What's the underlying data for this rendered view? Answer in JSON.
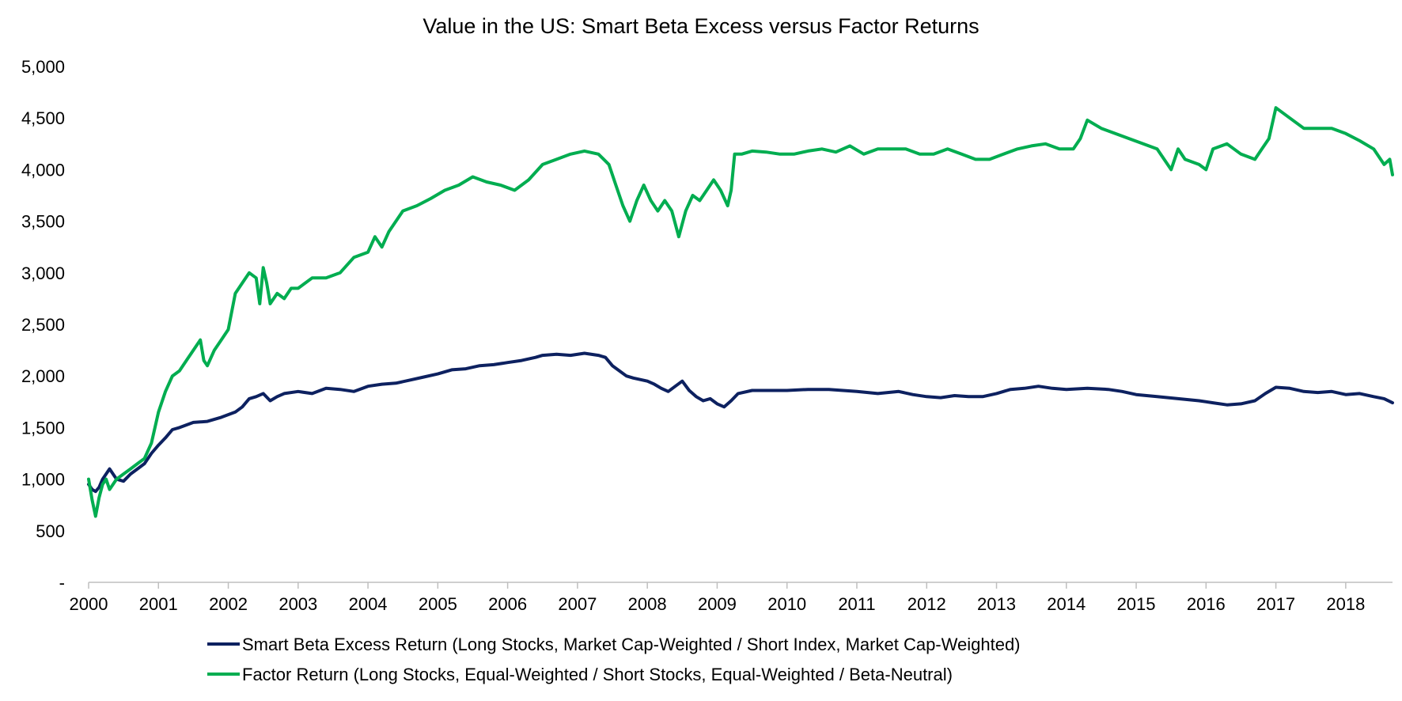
{
  "chart_data": {
    "type": "line",
    "title": "Value in the US: Smart Beta Excess versus Factor Returns",
    "xlabel": "",
    "ylabel": "",
    "ylim": [
      0,
      5000
    ],
    "xlim": [
      2000.0,
      2018.67
    ],
    "grid": false,
    "legend_position": "bottom",
    "y_ticks": [
      {
        "value": 0,
        "label": "-"
      },
      {
        "value": 500,
        "label": "500"
      },
      {
        "value": 1000,
        "label": "1,000"
      },
      {
        "value": 1500,
        "label": "1,500"
      },
      {
        "value": 2000,
        "label": "2,000"
      },
      {
        "value": 2500,
        "label": "2,500"
      },
      {
        "value": 3000,
        "label": "3,000"
      },
      {
        "value": 3500,
        "label": "3,500"
      },
      {
        "value": 4000,
        "label": "4,000"
      },
      {
        "value": 4500,
        "label": "4,500"
      },
      {
        "value": 5000,
        "label": "5,000"
      }
    ],
    "x_ticks": [
      {
        "value": 2000,
        "label": "2000"
      },
      {
        "value": 2001,
        "label": "2001"
      },
      {
        "value": 2002,
        "label": "2002"
      },
      {
        "value": 2003,
        "label": "2003"
      },
      {
        "value": 2004,
        "label": "2004"
      },
      {
        "value": 2005,
        "label": "2005"
      },
      {
        "value": 2006,
        "label": "2006"
      },
      {
        "value": 2007,
        "label": "2007"
      },
      {
        "value": 2008,
        "label": "2008"
      },
      {
        "value": 2009,
        "label": "2009"
      },
      {
        "value": 2010,
        "label": "2010"
      },
      {
        "value": 2011,
        "label": "2011"
      },
      {
        "value": 2012,
        "label": "2012"
      },
      {
        "value": 2013,
        "label": "2013"
      },
      {
        "value": 2014,
        "label": "2014"
      },
      {
        "value": 2015,
        "label": "2015"
      },
      {
        "value": 2016,
        "label": "2016"
      },
      {
        "value": 2017,
        "label": "2017"
      },
      {
        "value": 2018,
        "label": "2018"
      }
    ],
    "series": [
      {
        "name": "Smart Beta Excess Return (Long Stocks, Market Cap-Weighted / Short Index, Market Cap-Weighted)",
        "color": "#0d2160",
        "x": [
          2000.0,
          2000.05,
          2000.1,
          2000.15,
          2000.2,
          2000.25,
          2000.3,
          2000.4,
          2000.5,
          2000.6,
          2000.7,
          2000.8,
          2000.9,
          2001.0,
          2001.1,
          2001.2,
          2001.3,
          2001.5,
          2001.7,
          2001.9,
          2002.1,
          2002.2,
          2002.3,
          2002.4,
          2002.5,
          2002.6,
          2002.7,
          2002.8,
          2003.0,
          2003.2,
          2003.4,
          2003.6,
          2003.8,
          2004.0,
          2004.2,
          2004.4,
          2004.6,
          2004.8,
          2005.0,
          2005.2,
          2005.4,
          2005.6,
          2005.8,
          2006.0,
          2006.2,
          2006.4,
          2006.5,
          2006.7,
          2006.9,
          2007.1,
          2007.3,
          2007.4,
          2007.5,
          2007.6,
          2007.7,
          2007.8,
          2008.0,
          2008.1,
          2008.2,
          2008.3,
          2008.4,
          2008.5,
          2008.6,
          2008.7,
          2008.8,
          2008.9,
          2009.0,
          2009.1,
          2009.2,
          2009.3,
          2009.5,
          2009.7,
          2010.0,
          2010.3,
          2010.6,
          2011.0,
          2011.3,
          2011.6,
          2011.8,
          2012.0,
          2012.2,
          2012.4,
          2012.6,
          2012.8,
          2013.0,
          2013.2,
          2013.4,
          2013.6,
          2013.8,
          2014.0,
          2014.3,
          2014.6,
          2014.8,
          2015.0,
          2015.3,
          2015.6,
          2015.9,
          2016.1,
          2016.3,
          2016.5,
          2016.7,
          2016.85,
          2017.0,
          2017.2,
          2017.4,
          2017.6,
          2017.8,
          2018.0,
          2018.2,
          2018.4,
          2018.55,
          2018.67
        ],
        "values": [
          950,
          900,
          880,
          920,
          1000,
          1050,
          1100,
          1000,
          980,
          1050,
          1100,
          1150,
          1250,
          1330,
          1400,
          1480,
          1500,
          1550,
          1560,
          1600,
          1650,
          1700,
          1780,
          1800,
          1830,
          1760,
          1800,
          1830,
          1850,
          1830,
          1880,
          1870,
          1850,
          1900,
          1920,
          1930,
          1960,
          1990,
          2020,
          2060,
          2070,
          2100,
          2110,
          2130,
          2150,
          2180,
          2200,
          2210,
          2200,
          2220,
          2200,
          2180,
          2100,
          2050,
          2000,
          1980,
          1950,
          1920,
          1880,
          1850,
          1900,
          1950,
          1860,
          1800,
          1760,
          1780,
          1730,
          1700,
          1760,
          1830,
          1860,
          1860,
          1860,
          1870,
          1870,
          1850,
          1830,
          1850,
          1820,
          1800,
          1790,
          1810,
          1800,
          1800,
          1830,
          1870,
          1880,
          1900,
          1880,
          1870,
          1880,
          1870,
          1850,
          1820,
          1800,
          1780,
          1760,
          1740,
          1720,
          1730,
          1760,
          1830,
          1890,
          1880,
          1850,
          1840,
          1850,
          1820,
          1830,
          1800,
          1780,
          1740
        ]
      },
      {
        "name": "Factor Return (Long Stocks, Equal-Weighted / Short Stocks, Equal-Weighted / Beta-Neutral)",
        "color": "#00ad50",
        "x": [
          2000.0,
          2000.05,
          2000.1,
          2000.15,
          2000.2,
          2000.25,
          2000.3,
          2000.35,
          2000.4,
          2000.5,
          2000.6,
          2000.7,
          2000.8,
          2000.9,
          2001.0,
          2001.1,
          2001.2,
          2001.3,
          2001.4,
          2001.5,
          2001.6,
          2001.65,
          2001.7,
          2001.8,
          2001.9,
          2002.0,
          2002.1,
          2002.2,
          2002.3,
          2002.4,
          2002.45,
          2002.5,
          2002.55,
          2002.6,
          2002.7,
          2002.8,
          2002.9,
          2003.0,
          2003.2,
          2003.4,
          2003.6,
          2003.8,
          2004.0,
          2004.1,
          2004.2,
          2004.3,
          2004.4,
          2004.5,
          2004.7,
          2004.9,
          2005.1,
          2005.3,
          2005.5,
          2005.7,
          2005.9,
          2006.1,
          2006.3,
          2006.5,
          2006.7,
          2006.9,
          2007.1,
          2007.3,
          2007.45,
          2007.55,
          2007.65,
          2007.75,
          2007.85,
          2007.95,
          2008.05,
          2008.15,
          2008.25,
          2008.35,
          2008.45,
          2008.55,
          2008.65,
          2008.75,
          2008.85,
          2008.95,
          2009.05,
          2009.15,
          2009.2,
          2009.25,
          2009.35,
          2009.5,
          2009.7,
          2009.9,
          2010.1,
          2010.3,
          2010.5,
          2010.7,
          2010.9,
          2011.1,
          2011.3,
          2011.5,
          2011.7,
          2011.9,
          2012.1,
          2012.3,
          2012.5,
          2012.7,
          2012.9,
          2013.1,
          2013.3,
          2013.5,
          2013.7,
          2013.9,
          2014.1,
          2014.2,
          2014.3,
          2014.5,
          2014.7,
          2014.9,
          2015.1,
          2015.3,
          2015.5,
          2015.6,
          2015.7,
          2015.9,
          2016.0,
          2016.1,
          2016.3,
          2016.5,
          2016.7,
          2016.8,
          2016.9,
          2017.0,
          2017.2,
          2017.4,
          2017.6,
          2017.8,
          2018.0,
          2018.2,
          2018.4,
          2018.55,
          2018.63,
          2018.67
        ],
        "values": [
          1000,
          800,
          640,
          820,
          950,
          1000,
          900,
          950,
          1000,
          1050,
          1100,
          1150,
          1200,
          1350,
          1650,
          1850,
          2000,
          2050,
          2150,
          2250,
          2350,
          2150,
          2100,
          2250,
          2350,
          2450,
          2800,
          2900,
          3000,
          2950,
          2700,
          3050,
          2900,
          2700,
          2800,
          2750,
          2850,
          2850,
          2950,
          2950,
          3000,
          3150,
          3200,
          3350,
          3250,
          3400,
          3500,
          3600,
          3650,
          3720,
          3800,
          3850,
          3930,
          3880,
          3850,
          3800,
          3900,
          4050,
          4100,
          4150,
          4180,
          4150,
          4050,
          3850,
          3650,
          3500,
          3700,
          3850,
          3700,
          3600,
          3700,
          3600,
          3350,
          3600,
          3750,
          3700,
          3800,
          3900,
          3800,
          3650,
          3800,
          4150,
          4150,
          4180,
          4170,
          4150,
          4150,
          4180,
          4200,
          4170,
          4230,
          4150,
          4200,
          4200,
          4200,
          4150,
          4150,
          4200,
          4150,
          4100,
          4100,
          4150,
          4200,
          4230,
          4250,
          4200,
          4200,
          4300,
          4480,
          4400,
          4350,
          4300,
          4250,
          4200,
          4000,
          4200,
          4100,
          4050,
          4000,
          4200,
          4250,
          4150,
          4100,
          4200,
          4300,
          4600,
          4500,
          4400,
          4400,
          4400,
          4350,
          4280,
          4200,
          4050,
          4100,
          3950
        ]
      }
    ]
  }
}
